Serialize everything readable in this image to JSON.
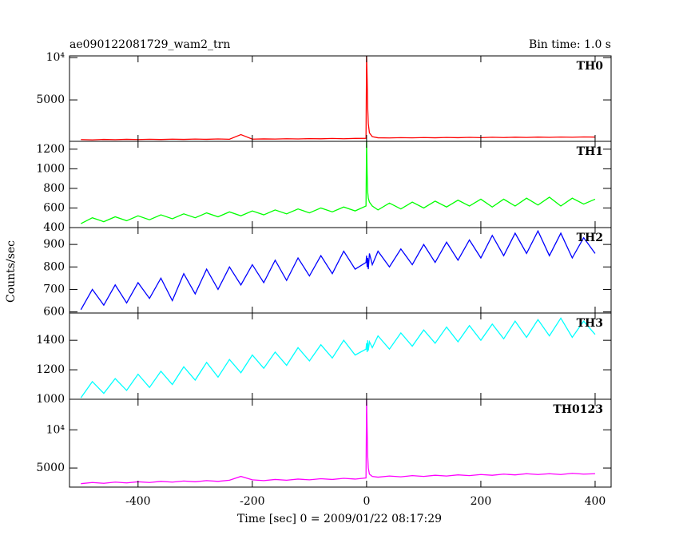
{
  "chart_data": [
    {
      "type": "line",
      "title": "ae090122081729_wam2_trn",
      "subtitle": "Bin time: 1.0 s",
      "x": [
        -500,
        -480,
        -460,
        -440,
        -420,
        -400,
        -380,
        -360,
        -340,
        -320,
        -300,
        -280,
        -260,
        -240,
        -220,
        -200,
        -180,
        -160,
        -140,
        -120,
        -100,
        -80,
        -60,
        -40,
        -20,
        -1,
        0,
        1,
        2,
        3,
        5,
        10,
        20,
        40,
        60,
        80,
        100,
        120,
        140,
        160,
        180,
        200,
        220,
        240,
        260,
        280,
        300,
        320,
        340,
        360,
        380,
        400
      ],
      "xlim": [
        -520,
        428
      ],
      "ylim": [
        100,
        10200
      ],
      "yticks": [
        {
          "value": 10000,
          "label": "10⁴"
        },
        5000
      ],
      "series": [
        {
          "name": "TH0",
          "color": "#ff0000",
          "values": [
            310,
            280,
            330,
            300,
            340,
            310,
            350,
            320,
            360,
            330,
            370,
            340,
            380,
            350,
            900,
            360,
            390,
            370,
            410,
            380,
            420,
            400,
            440,
            410,
            450,
            460,
            10200,
            7500,
            4000,
            2200,
            1100,
            650,
            520,
            500,
            540,
            510,
            550,
            520,
            560,
            530,
            570,
            540,
            580,
            550,
            590,
            560,
            600,
            570,
            610,
            580,
            620,
            600
          ]
        }
      ]
    },
    {
      "type": "line",
      "x": [
        -500,
        -480,
        -460,
        -440,
        -420,
        -400,
        -380,
        -360,
        -340,
        -320,
        -300,
        -280,
        -260,
        -240,
        -220,
        -200,
        -180,
        -160,
        -140,
        -120,
        -100,
        -80,
        -60,
        -40,
        -20,
        -1,
        0,
        1,
        2,
        3,
        5,
        10,
        20,
        40,
        60,
        80,
        100,
        120,
        140,
        160,
        180,
        200,
        220,
        240,
        260,
        280,
        300,
        320,
        340,
        360,
        380,
        400
      ],
      "xlim": [
        -520,
        428
      ],
      "ylim": [
        400,
        1280
      ],
      "yticks": [
        400,
        600,
        800,
        1000,
        1200
      ],
      "series": [
        {
          "name": "TH1",
          "color": "#00ff00",
          "values": [
            440,
            500,
            460,
            510,
            470,
            520,
            480,
            530,
            490,
            540,
            500,
            550,
            510,
            560,
            520,
            570,
            530,
            580,
            540,
            590,
            550,
            600,
            560,
            610,
            570,
            620,
            1280,
            950,
            760,
            700,
            660,
            620,
            580,
            650,
            590,
            660,
            600,
            670,
            610,
            680,
            620,
            690,
            610,
            690,
            620,
            700,
            630,
            710,
            620,
            700,
            640,
            690
          ]
        }
      ]
    },
    {
      "type": "line",
      "ylabel": "Counts/sec",
      "x": [
        -500,
        -480,
        -460,
        -440,
        -420,
        -400,
        -380,
        -360,
        -340,
        -320,
        -300,
        -280,
        -260,
        -240,
        -220,
        -200,
        -180,
        -160,
        -140,
        -120,
        -100,
        -80,
        -60,
        -40,
        -20,
        -1,
        0,
        1,
        2,
        3,
        5,
        10,
        20,
        40,
        60,
        80,
        100,
        120,
        140,
        160,
        180,
        200,
        220,
        240,
        260,
        280,
        300,
        320,
        340,
        360,
        380,
        400
      ],
      "xlim": [
        -520,
        428
      ],
      "ylim": [
        595,
        975
      ],
      "yticks": [
        600,
        700,
        800,
        900
      ],
      "series": [
        {
          "name": "TH2",
          "color": "#0000ff",
          "values": [
            610,
            700,
            630,
            720,
            640,
            730,
            660,
            750,
            650,
            770,
            680,
            790,
            700,
            800,
            720,
            810,
            730,
            830,
            740,
            840,
            760,
            850,
            770,
            870,
            790,
            820,
            850,
            800,
            840,
            790,
            860,
            810,
            870,
            800,
            880,
            810,
            900,
            820,
            910,
            830,
            920,
            840,
            940,
            850,
            950,
            860,
            960,
            850,
            950,
            840,
            930,
            860
          ]
        }
      ]
    },
    {
      "type": "line",
      "x": [
        -500,
        -480,
        -460,
        -440,
        -420,
        -400,
        -380,
        -360,
        -340,
        -320,
        -300,
        -280,
        -260,
        -240,
        -220,
        -200,
        -180,
        -160,
        -140,
        -120,
        -100,
        -80,
        -60,
        -40,
        -20,
        -1,
        0,
        1,
        2,
        3,
        5,
        10,
        20,
        40,
        60,
        80,
        100,
        120,
        140,
        160,
        180,
        200,
        220,
        240,
        260,
        280,
        300,
        320,
        340,
        360,
        380,
        400
      ],
      "xlim": [
        -520,
        428
      ],
      "ylim": [
        1000,
        1585
      ],
      "yticks": [
        1000,
        1200,
        1400
      ],
      "series": [
        {
          "name": "TH3",
          "color": "#00ffff",
          "values": [
            1010,
            1120,
            1040,
            1140,
            1060,
            1170,
            1080,
            1190,
            1100,
            1220,
            1130,
            1250,
            1150,
            1270,
            1180,
            1300,
            1210,
            1320,
            1230,
            1350,
            1260,
            1370,
            1280,
            1400,
            1300,
            1340,
            1380,
            1320,
            1400,
            1330,
            1390,
            1350,
            1430,
            1340,
            1450,
            1360,
            1470,
            1380,
            1490,
            1390,
            1500,
            1400,
            1510,
            1410,
            1530,
            1420,
            1540,
            1430,
            1550,
            1420,
            1530,
            1440
          ]
        }
      ]
    },
    {
      "type": "line",
      "xlabel": "Time [sec] 0 = 2009/01/22 08:17:29",
      "x": [
        -500,
        -480,
        -460,
        -440,
        -420,
        -400,
        -380,
        -360,
        -340,
        -320,
        -300,
        -280,
        -260,
        -240,
        -220,
        -200,
        -180,
        -160,
        -140,
        -120,
        -100,
        -80,
        -60,
        -40,
        -20,
        -1,
        0,
        1,
        2,
        3,
        5,
        10,
        20,
        40,
        60,
        80,
        100,
        120,
        140,
        160,
        180,
        200,
        220,
        240,
        260,
        280,
        300,
        320,
        340,
        360,
        380,
        400
      ],
      "xlim": [
        -520,
        428
      ],
      "xticks": [
        -400,
        -200,
        0,
        200,
        400
      ],
      "ylim": [
        2500,
        14000
      ],
      "yticks": [
        {
          "value": 10000,
          "label": "10⁴"
        },
        5000
      ],
      "series": [
        {
          "name": "TH0123",
          "color": "#ff00ff",
          "values": [
            2950,
            3100,
            3000,
            3150,
            3050,
            3200,
            3100,
            3250,
            3150,
            3300,
            3200,
            3350,
            3250,
            3400,
            3900,
            3450,
            3350,
            3500,
            3400,
            3550,
            3450,
            3600,
            3500,
            3650,
            3550,
            3700,
            14000,
            10000,
            6500,
            5000,
            4200,
            3900,
            3800,
            3950,
            3850,
            4000,
            3900,
            4050,
            3950,
            4100,
            4000,
            4150,
            4050,
            4200,
            4100,
            4250,
            4150,
            4250,
            4150,
            4300,
            4200,
            4250
          ]
        }
      ]
    }
  ]
}
